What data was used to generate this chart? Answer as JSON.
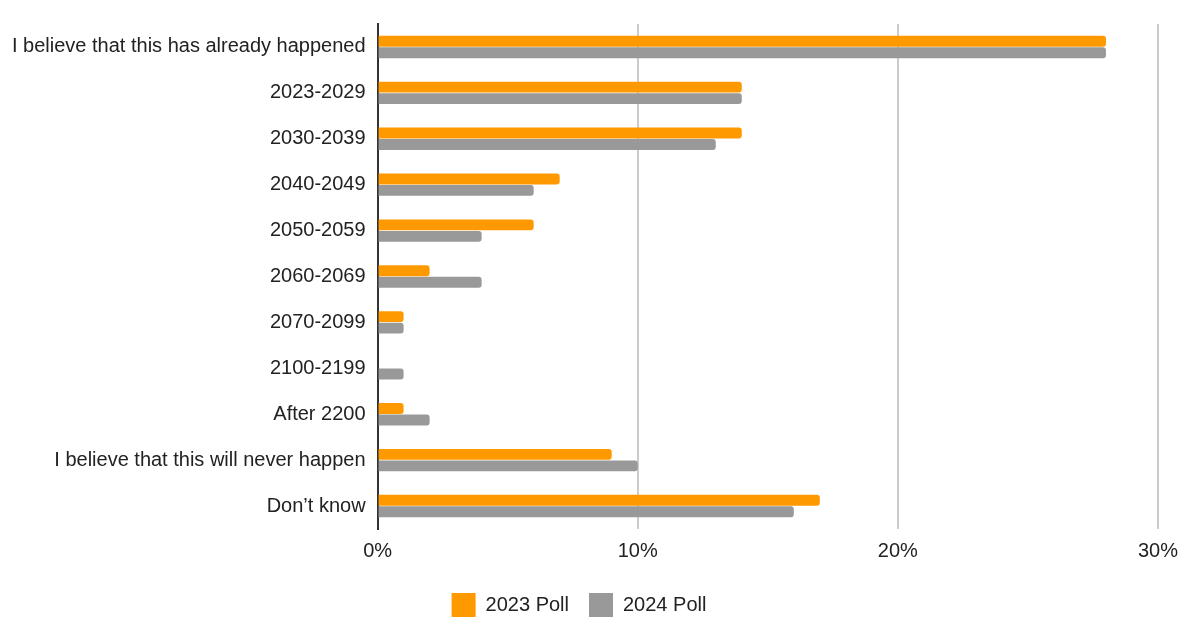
{
  "chart_data": {
    "type": "bar",
    "orientation": "horizontal",
    "categories": [
      "I believe that this has already happened",
      "2023-2029",
      "2030-2039",
      "2040-2049",
      "2050-2059",
      "2060-2069",
      "2070-2099",
      "2100-2199",
      "After 2200",
      "I believe that this will never happen",
      "Don’t know"
    ],
    "series": [
      {
        "name": "2023 Poll",
        "color": "#ff9900",
        "values": [
          28,
          14,
          14,
          7,
          6,
          2,
          1,
          0,
          1,
          9,
          17
        ]
      },
      {
        "name": "2024 Poll",
        "color": "#999999",
        "values": [
          28,
          14,
          13,
          6,
          4,
          4,
          1,
          1,
          2,
          10,
          16
        ]
      }
    ],
    "xlim": [
      0,
      30
    ],
    "xticks": [
      {
        "value": 0,
        "label": "0%"
      },
      {
        "value": 10,
        "label": "10%"
      },
      {
        "value": 20,
        "label": "20%"
      },
      {
        "value": 30,
        "label": "30%"
      }
    ],
    "grid": "x",
    "legend": "bottom"
  }
}
